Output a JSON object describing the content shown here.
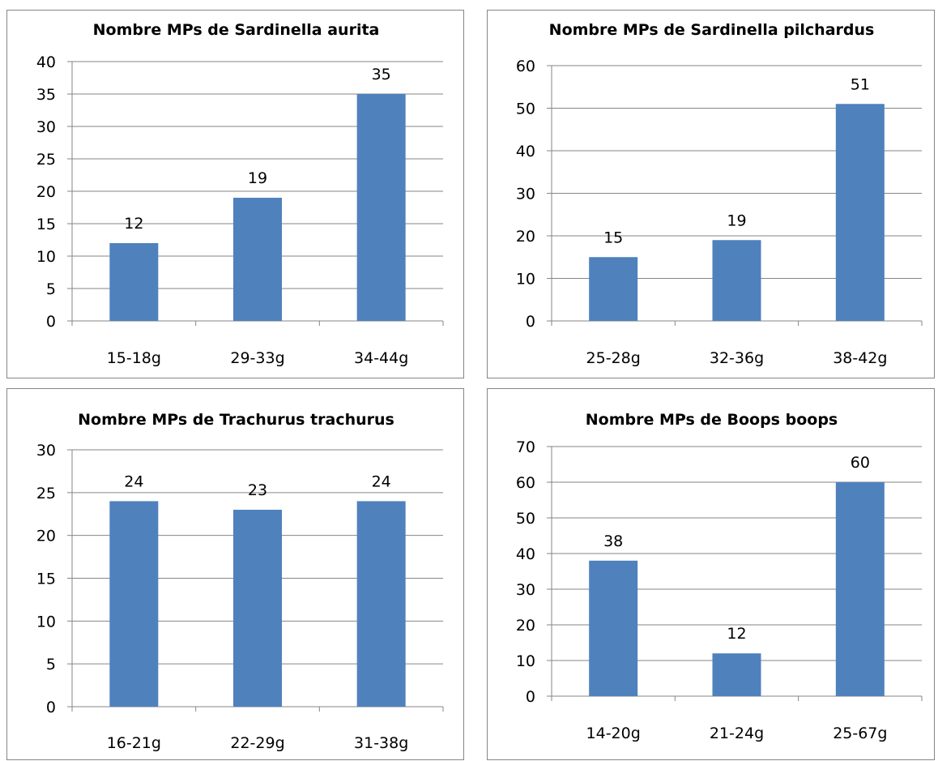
{
  "chart_data": [
    {
      "type": "bar",
      "title": "Nombre MPs de Sardinella aurita",
      "categories": [
        "15-18g",
        "29-33g",
        "34-44g"
      ],
      "values": [
        12,
        19,
        35
      ],
      "data_labels": [
        "12",
        "19",
        "35"
      ],
      "ylim": [
        0,
        40
      ],
      "yticks": [
        "0",
        "5",
        "10",
        "15",
        "20",
        "25",
        "30",
        "35",
        "40"
      ],
      "grid": true,
      "legend": "none",
      "bar_color": "#4f81bd"
    },
    {
      "type": "bar",
      "title": "Nombre MPs de Sardinella pilchardus",
      "categories": [
        "25-28g",
        "32-36g",
        "38-42g"
      ],
      "values": [
        15,
        19,
        51
      ],
      "data_labels": [
        "15",
        "19",
        "51"
      ],
      "ylim": [
        0,
        60
      ],
      "yticks": [
        "0",
        "10",
        "20",
        "30",
        "40",
        "50",
        "60"
      ],
      "grid": true,
      "legend": "none",
      "bar_color": "#4f81bd"
    },
    {
      "type": "bar",
      "title": "Nombre MPs de Trachurus trachurus",
      "categories": [
        "16-21g",
        "22-29g",
        "31-38g"
      ],
      "values": [
        24,
        23,
        24
      ],
      "data_labels": [
        "24",
        "23",
        "24"
      ],
      "ylim": [
        0,
        30
      ],
      "yticks": [
        "0",
        "5",
        "10",
        "15",
        "20",
        "25",
        "30"
      ],
      "grid": true,
      "legend": "none",
      "bar_color": "#4f81bd"
    },
    {
      "type": "bar",
      "title": "Nombre MPs de Boops boops",
      "categories": [
        "14-20g",
        "21-24g",
        "25-67g"
      ],
      "values": [
        38,
        12,
        60
      ],
      "data_labels": [
        "38",
        "12",
        "60"
      ],
      "ylim": [
        0,
        70
      ],
      "yticks": [
        "0",
        "10",
        "20",
        "30",
        "40",
        "50",
        "60",
        "70"
      ],
      "grid": true,
      "legend": "none",
      "bar_color": "#4f81bd"
    }
  ]
}
